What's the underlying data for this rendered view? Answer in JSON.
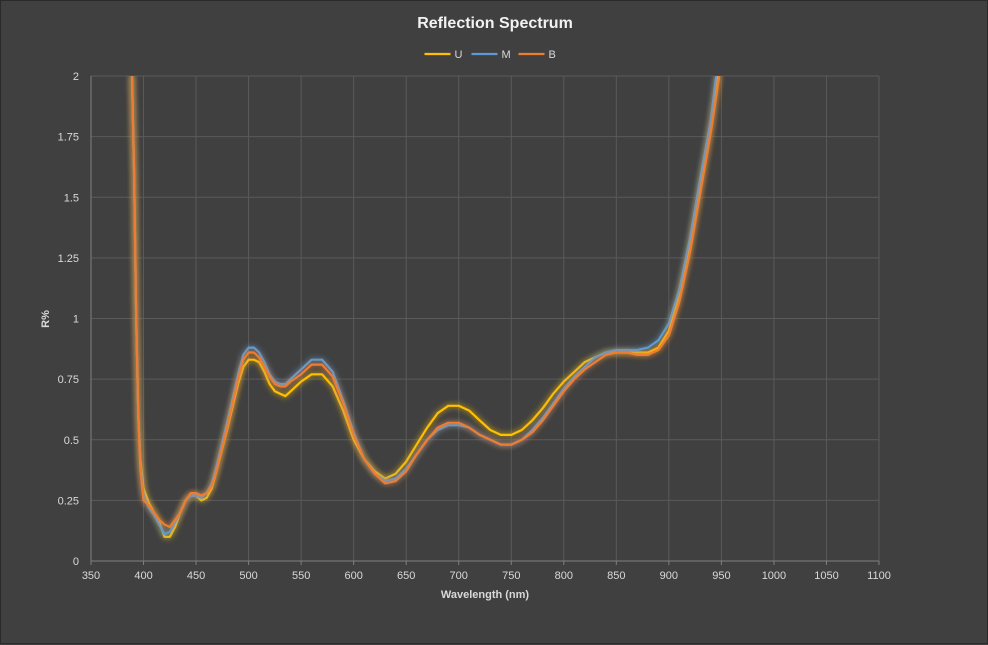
{
  "chart_data": {
    "type": "line",
    "title": "Reflection Spectrum",
    "xlabel": "Wavelength (nm)",
    "ylabel": "R%",
    "xlim": [
      350,
      1100
    ],
    "ylim": [
      0,
      2
    ],
    "x_ticks": [
      350,
      400,
      450,
      500,
      550,
      600,
      650,
      700,
      750,
      800,
      850,
      900,
      950,
      1000,
      1050,
      1100
    ],
    "y_ticks": [
      0,
      0.25,
      0.5,
      0.75,
      1,
      1.25,
      1.5,
      1.75,
      2
    ],
    "y_tick_labels": [
      "0",
      "0.25",
      "0.5",
      "0.75",
      "1",
      "1.25",
      "1.5",
      "1.75",
      "2"
    ],
    "grid": true,
    "legend_position": "top-center",
    "series": [
      {
        "name": "U",
        "color": "#ffc000",
        "points": [
          [
            389,
            2.0
          ],
          [
            391,
            1.6
          ],
          [
            393,
            1.0
          ],
          [
            395,
            0.6
          ],
          [
            397,
            0.42
          ],
          [
            400,
            0.3
          ],
          [
            405,
            0.24
          ],
          [
            410,
            0.2
          ],
          [
            415,
            0.16
          ],
          [
            420,
            0.1
          ],
          [
            425,
            0.1
          ],
          [
            430,
            0.14
          ],
          [
            435,
            0.2
          ],
          [
            440,
            0.25
          ],
          [
            445,
            0.27
          ],
          [
            450,
            0.27
          ],
          [
            455,
            0.25
          ],
          [
            460,
            0.26
          ],
          [
            465,
            0.3
          ],
          [
            470,
            0.38
          ],
          [
            480,
            0.55
          ],
          [
            490,
            0.73
          ],
          [
            495,
            0.8
          ],
          [
            500,
            0.83
          ],
          [
            505,
            0.83
          ],
          [
            510,
            0.82
          ],
          [
            515,
            0.78
          ],
          [
            520,
            0.73
          ],
          [
            525,
            0.7
          ],
          [
            530,
            0.69
          ],
          [
            535,
            0.68
          ],
          [
            540,
            0.7
          ],
          [
            550,
            0.74
          ],
          [
            560,
            0.77
          ],
          [
            570,
            0.77
          ],
          [
            580,
            0.72
          ],
          [
            590,
            0.62
          ],
          [
            600,
            0.5
          ],
          [
            610,
            0.42
          ],
          [
            620,
            0.37
          ],
          [
            630,
            0.34
          ],
          [
            640,
            0.36
          ],
          [
            650,
            0.41
          ],
          [
            660,
            0.48
          ],
          [
            670,
            0.55
          ],
          [
            680,
            0.61
          ],
          [
            690,
            0.64
          ],
          [
            700,
            0.64
          ],
          [
            710,
            0.62
          ],
          [
            720,
            0.58
          ],
          [
            730,
            0.54
          ],
          [
            740,
            0.52
          ],
          [
            750,
            0.52
          ],
          [
            760,
            0.54
          ],
          [
            770,
            0.58
          ],
          [
            780,
            0.63
          ],
          [
            790,
            0.69
          ],
          [
            800,
            0.74
          ],
          [
            810,
            0.78
          ],
          [
            820,
            0.82
          ],
          [
            830,
            0.84
          ],
          [
            840,
            0.86
          ],
          [
            850,
            0.86
          ],
          [
            860,
            0.86
          ],
          [
            870,
            0.86
          ],
          [
            880,
            0.86
          ],
          [
            890,
            0.88
          ],
          [
            900,
            0.95
          ],
          [
            910,
            1.1
          ],
          [
            920,
            1.3
          ],
          [
            930,
            1.55
          ],
          [
            940,
            1.8
          ],
          [
            947,
            2.0
          ]
        ]
      },
      {
        "name": "M",
        "color": "#5b9bd5",
        "points": [
          [
            389,
            2.0
          ],
          [
            391,
            1.6
          ],
          [
            393,
            1.0
          ],
          [
            395,
            0.6
          ],
          [
            397,
            0.4
          ],
          [
            400,
            0.27
          ],
          [
            405,
            0.22
          ],
          [
            410,
            0.19
          ],
          [
            415,
            0.15
          ],
          [
            420,
            0.11
          ],
          [
            425,
            0.12
          ],
          [
            430,
            0.16
          ],
          [
            435,
            0.2
          ],
          [
            440,
            0.25
          ],
          [
            445,
            0.27
          ],
          [
            450,
            0.27
          ],
          [
            455,
            0.26
          ],
          [
            460,
            0.28
          ],
          [
            465,
            0.32
          ],
          [
            470,
            0.4
          ],
          [
            480,
            0.58
          ],
          [
            490,
            0.77
          ],
          [
            495,
            0.85
          ],
          [
            500,
            0.88
          ],
          [
            505,
            0.88
          ],
          [
            510,
            0.86
          ],
          [
            515,
            0.82
          ],
          [
            520,
            0.77
          ],
          [
            525,
            0.74
          ],
          [
            530,
            0.73
          ],
          [
            535,
            0.73
          ],
          [
            540,
            0.75
          ],
          [
            550,
            0.79
          ],
          [
            560,
            0.83
          ],
          [
            570,
            0.83
          ],
          [
            580,
            0.78
          ],
          [
            590,
            0.66
          ],
          [
            600,
            0.53
          ],
          [
            610,
            0.42
          ],
          [
            620,
            0.36
          ],
          [
            630,
            0.33
          ],
          [
            640,
            0.34
          ],
          [
            650,
            0.38
          ],
          [
            660,
            0.44
          ],
          [
            670,
            0.5
          ],
          [
            680,
            0.54
          ],
          [
            690,
            0.56
          ],
          [
            700,
            0.56
          ],
          [
            710,
            0.55
          ],
          [
            720,
            0.52
          ],
          [
            730,
            0.5
          ],
          [
            740,
            0.48
          ],
          [
            750,
            0.48
          ],
          [
            760,
            0.5
          ],
          [
            770,
            0.54
          ],
          [
            780,
            0.59
          ],
          [
            790,
            0.65
          ],
          [
            800,
            0.71
          ],
          [
            810,
            0.76
          ],
          [
            820,
            0.8
          ],
          [
            830,
            0.84
          ],
          [
            840,
            0.86
          ],
          [
            850,
            0.87
          ],
          [
            860,
            0.87
          ],
          [
            870,
            0.87
          ],
          [
            880,
            0.88
          ],
          [
            890,
            0.91
          ],
          [
            900,
            0.98
          ],
          [
            910,
            1.12
          ],
          [
            920,
            1.33
          ],
          [
            930,
            1.58
          ],
          [
            940,
            1.82
          ],
          [
            945,
            2.0
          ]
        ]
      },
      {
        "name": "B",
        "color": "#ed7d31",
        "points": [
          [
            389,
            2.0
          ],
          [
            391,
            1.6
          ],
          [
            393,
            1.0
          ],
          [
            395,
            0.6
          ],
          [
            397,
            0.38
          ],
          [
            400,
            0.25
          ],
          [
            405,
            0.23
          ],
          [
            410,
            0.2
          ],
          [
            415,
            0.17
          ],
          [
            420,
            0.15
          ],
          [
            425,
            0.14
          ],
          [
            430,
            0.17
          ],
          [
            435,
            0.2
          ],
          [
            440,
            0.25
          ],
          [
            445,
            0.28
          ],
          [
            450,
            0.28
          ],
          [
            455,
            0.27
          ],
          [
            460,
            0.28
          ],
          [
            465,
            0.31
          ],
          [
            470,
            0.38
          ],
          [
            480,
            0.56
          ],
          [
            490,
            0.75
          ],
          [
            495,
            0.83
          ],
          [
            500,
            0.86
          ],
          [
            505,
            0.86
          ],
          [
            510,
            0.84
          ],
          [
            515,
            0.8
          ],
          [
            520,
            0.76
          ],
          [
            525,
            0.73
          ],
          [
            530,
            0.72
          ],
          [
            535,
            0.72
          ],
          [
            540,
            0.74
          ],
          [
            550,
            0.77
          ],
          [
            560,
            0.81
          ],
          [
            570,
            0.81
          ],
          [
            580,
            0.76
          ],
          [
            590,
            0.65
          ],
          [
            600,
            0.52
          ],
          [
            610,
            0.42
          ],
          [
            620,
            0.36
          ],
          [
            630,
            0.32
          ],
          [
            640,
            0.33
          ],
          [
            650,
            0.37
          ],
          [
            660,
            0.44
          ],
          [
            670,
            0.5
          ],
          [
            680,
            0.55
          ],
          [
            690,
            0.57
          ],
          [
            700,
            0.57
          ],
          [
            710,
            0.55
          ],
          [
            720,
            0.52
          ],
          [
            730,
            0.5
          ],
          [
            740,
            0.48
          ],
          [
            750,
            0.48
          ],
          [
            760,
            0.5
          ],
          [
            770,
            0.53
          ],
          [
            780,
            0.58
          ],
          [
            790,
            0.64
          ],
          [
            800,
            0.7
          ],
          [
            810,
            0.75
          ],
          [
            820,
            0.79
          ],
          [
            830,
            0.82
          ],
          [
            840,
            0.85
          ],
          [
            850,
            0.86
          ],
          [
            860,
            0.86
          ],
          [
            870,
            0.85
          ],
          [
            880,
            0.85
          ],
          [
            890,
            0.87
          ],
          [
            900,
            0.93
          ],
          [
            910,
            1.07
          ],
          [
            920,
            1.27
          ],
          [
            930,
            1.52
          ],
          [
            940,
            1.77
          ],
          [
            948,
            2.0
          ]
        ]
      }
    ]
  }
}
